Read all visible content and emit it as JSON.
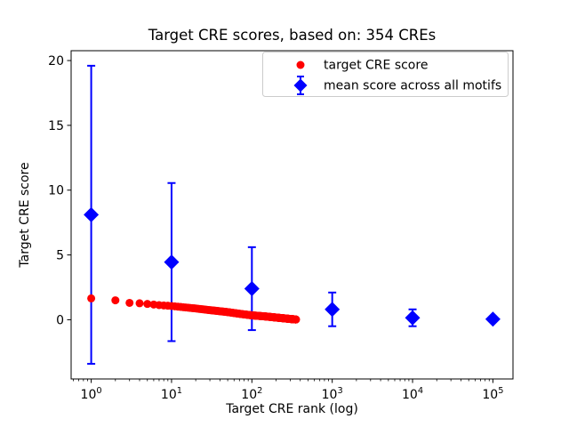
{
  "window": {
    "background": "#ffffff"
  },
  "chart_data": {
    "type": "scatter",
    "title": "Target CRE scores, based on: 354 CREs",
    "xlabel": "Target CRE rank (log)",
    "ylabel": "Target CRE score",
    "xscale": "log",
    "xlim_log10": [
      -0.25,
      5.25
    ],
    "ylim": [
      -4.57,
      20.76
    ],
    "x_tick_exponents": [
      0,
      1,
      2,
      3,
      4,
      5
    ],
    "x_tick_base": "10",
    "y_ticks": [
      0,
      5,
      10,
      15,
      20
    ],
    "grid": false,
    "axis_color": "#000000",
    "legend": {
      "position": "upper right",
      "entries": [
        {
          "label": "target CRE score",
          "marker": "circle",
          "color": "#ff0000"
        },
        {
          "label": "mean score across all motifs",
          "marker": "diamond-errorbar",
          "color": "#0000ff"
        }
      ]
    },
    "series": [
      {
        "name": "mean score across all motifs",
        "type": "errorbar",
        "marker": "diamond",
        "color": "#0000ff",
        "x": [
          1,
          10,
          100,
          1000,
          10000,
          100000
        ],
        "y": [
          8.1,
          4.45,
          2.4,
          0.8,
          0.15,
          0.05
        ],
        "yerr": [
          11.5,
          6.1,
          3.2,
          1.3,
          0.65,
          0.2
        ]
      },
      {
        "name": "target CRE score",
        "type": "scatter",
        "marker": "circle",
        "color": "#ff0000",
        "n_points": 354,
        "ranks_span": [
          1,
          354
        ],
        "anchor_ranks": [
          1,
          2,
          3,
          4,
          5,
          7,
          10,
          15,
          20,
          30,
          50,
          70,
          100,
          150,
          200,
          250,
          300,
          354
        ],
        "anchor_values": [
          1.65,
          1.5,
          1.3,
          1.27,
          1.22,
          1.13,
          1.06,
          0.95,
          0.87,
          0.74,
          0.59,
          0.46,
          0.34,
          0.25,
          0.17,
          0.11,
          0.06,
          0.02
        ]
      }
    ]
  }
}
